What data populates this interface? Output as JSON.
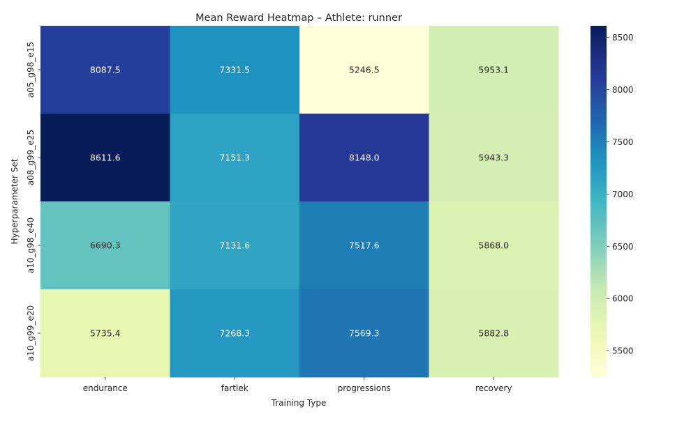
{
  "chart_data": {
    "type": "heatmap",
    "title": "Mean Reward Heatmap – Athlete: runner",
    "xlabel": "Training Type",
    "ylabel": "Hyperparameter Set",
    "x_categories": [
      "endurance",
      "fartlek",
      "progressions",
      "recovery"
    ],
    "y_categories": [
      "a05_g98_e15",
      "a08_g99_e25",
      "a10_g98_e40",
      "a10_g99_e20"
    ],
    "values": [
      [
        8087.5,
        7331.5,
        5246.5,
        5953.1
      ],
      [
        8611.6,
        7151.3,
        8148.0,
        5943.3
      ],
      [
        6690.3,
        7131.6,
        7517.6,
        5868.0
      ],
      [
        5735.4,
        7268.3,
        7569.3,
        5882.8
      ]
    ],
    "value_labels": [
      [
        "8087.5",
        "7331.5",
        "5246.5",
        "5953.1"
      ],
      [
        "8611.6",
        "7151.3",
        "8148.0",
        "5943.3"
      ],
      [
        "6690.3",
        "7131.6",
        "7517.6",
        "5868.0"
      ],
      [
        "5735.4",
        "7268.3",
        "7569.3",
        "5882.8"
      ]
    ],
    "colorscale": "YlGnBu",
    "vmin": 5246.5,
    "vmax": 8611.6,
    "colorbar_ticks": [
      "5500",
      "6000",
      "6500",
      "7000",
      "7500",
      "8000",
      "8500"
    ],
    "colorbar_tick_values": [
      5500,
      6000,
      6500,
      7000,
      7500,
      8000,
      8500
    ]
  }
}
